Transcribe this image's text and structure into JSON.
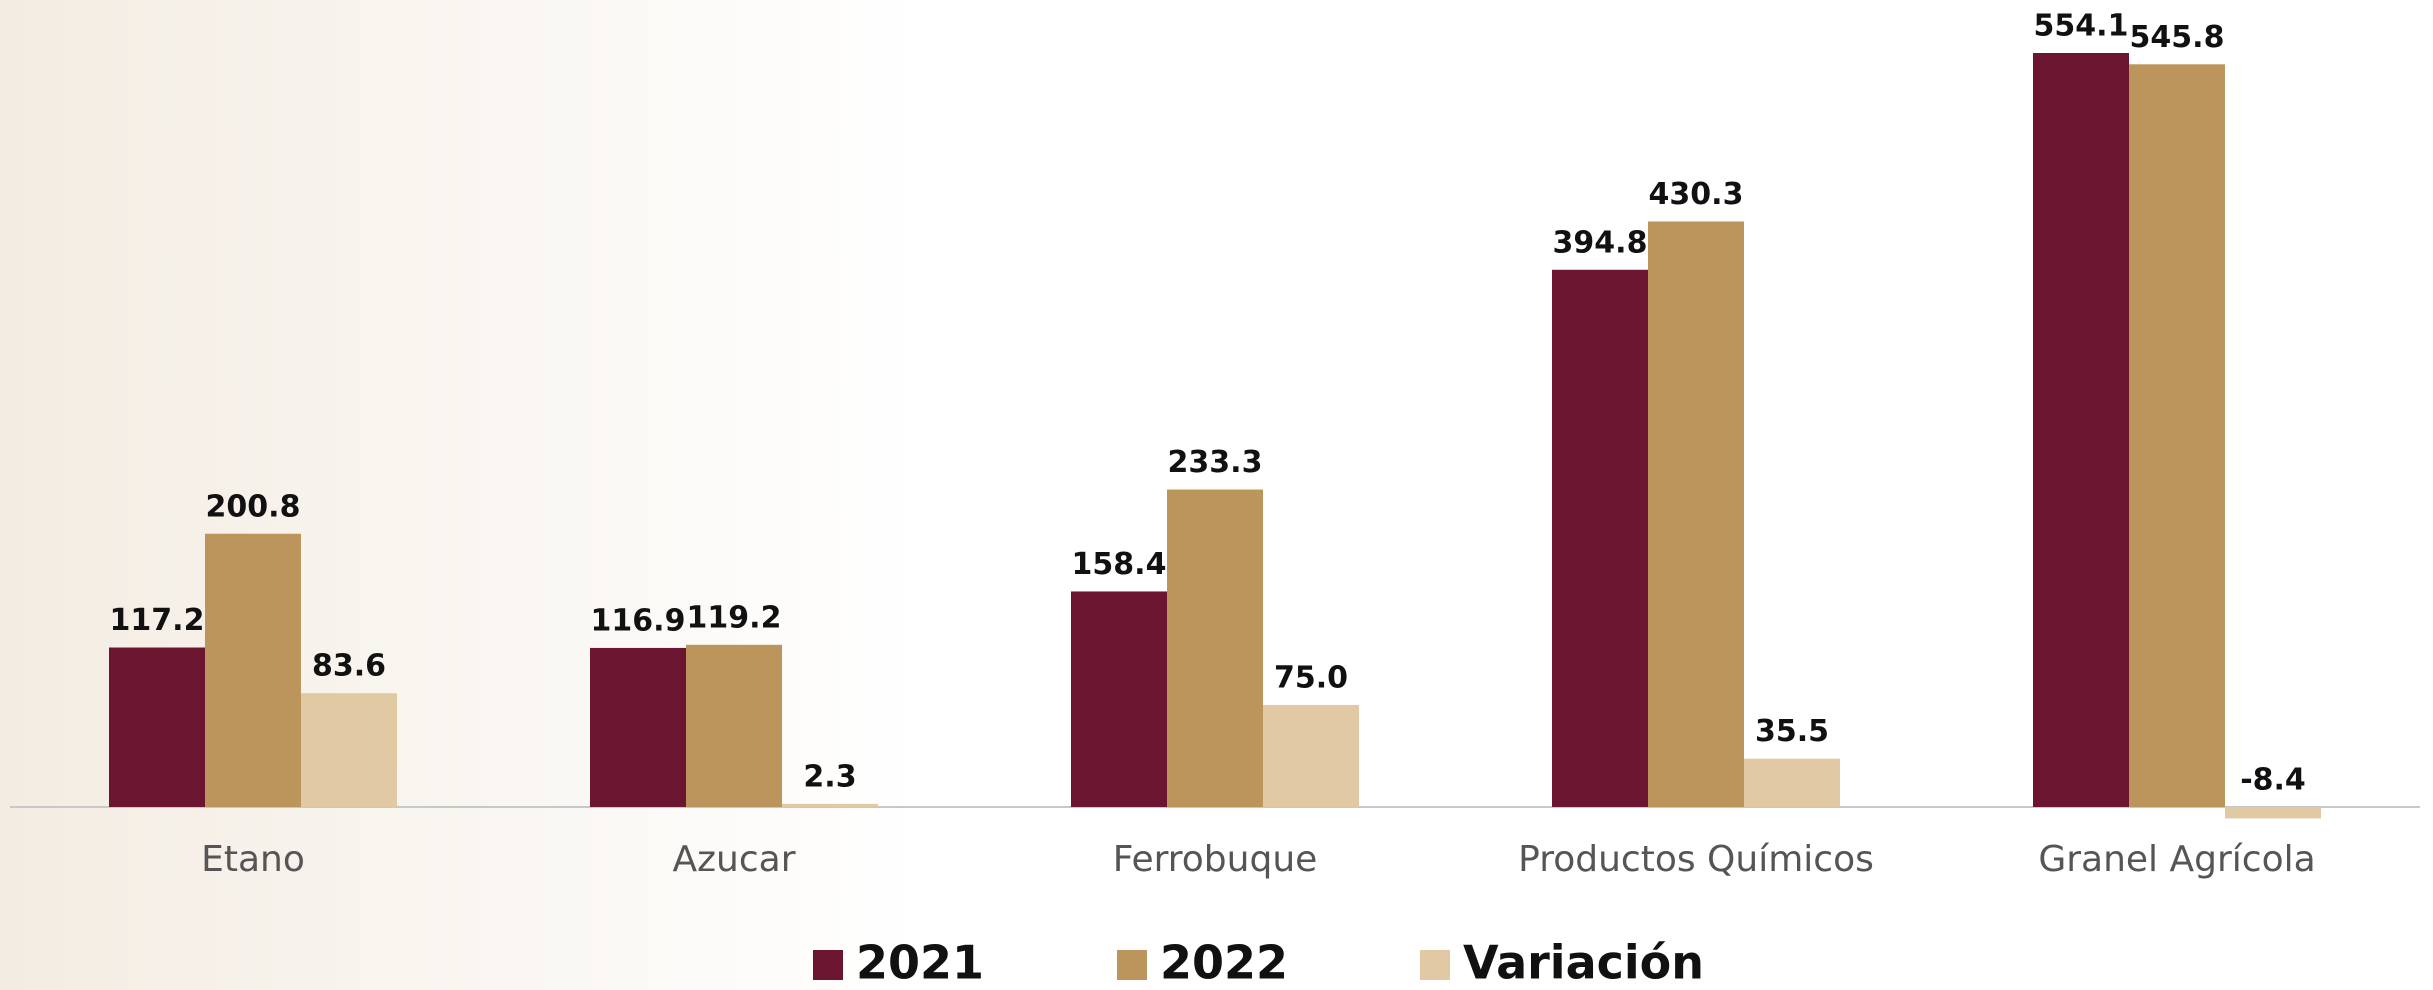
{
  "chart_data": {
    "type": "bar",
    "categories": [
      "Etano",
      "Azucar",
      "Ferrobuque",
      "Productos Químicos",
      "Granel Agrícola"
    ],
    "series": [
      {
        "name": "2021",
        "color": "#6b1530",
        "values": [
          117.2,
          116.9,
          158.4,
          394.8,
          554.1
        ],
        "value_labels": [
          "117.2",
          "116.9",
          "158.4",
          "394.8",
          "554.1"
        ]
      },
      {
        "name": "2022",
        "color": "#bc955c",
        "values": [
          200.8,
          119.2,
          233.3,
          430.3,
          545.8
        ],
        "value_labels": [
          "200.8",
          "119.2",
          "233.3",
          "430.3",
          "545.8"
        ]
      },
      {
        "name": "Variación",
        "color": "#e0c9a3",
        "values": [
          83.6,
          2.3,
          75.0,
          35.5,
          -8.4
        ],
        "value_labels": [
          "83.6",
          "2.3",
          "75.0",
          "35.5",
          "-8.4"
        ]
      }
    ],
    "legend": "bottom"
  }
}
